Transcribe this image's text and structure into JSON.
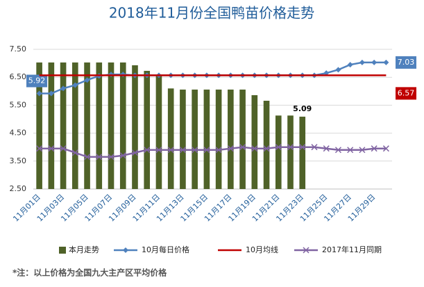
{
  "chart_data": {
    "type": "bar_line",
    "title": "2018年11月份全国鸭苗价格走势",
    "note": "*注：以上价格为全国九大主产区平均价格",
    "categories": [
      "11月01日",
      null,
      "11月03日",
      null,
      "11月05日",
      null,
      "11月07日",
      null,
      "11月09日",
      null,
      "11月11日",
      null,
      "11月13日",
      null,
      "11月15日",
      null,
      "11月17日",
      null,
      "11月19日",
      null,
      "11月21日",
      null,
      "11月23日",
      null,
      "11月25日",
      null,
      "11月27日",
      null,
      "11月29日",
      null
    ],
    "ylim": [
      2.5,
      7.5
    ],
    "yticks": [
      {
        "value": 2.5,
        "label": "2.50"
      },
      {
        "value": 3.5,
        "label": "3.50"
      },
      {
        "value": 4.5,
        "label": "4.50"
      },
      {
        "value": 5.5,
        "label": "5.50"
      },
      {
        "value": 6.5,
        "label": "6.50"
      },
      {
        "value": 7.5,
        "label": "7.50"
      }
    ],
    "grid": true,
    "legend": "bottom",
    "series": [
      {
        "name": "本月走势",
        "kind": "bar",
        "color": "#4f6228",
        "values": [
          7.03,
          7.03,
          7.03,
          7.03,
          7.03,
          7.03,
          7.03,
          7.03,
          6.93,
          6.73,
          6.58,
          6.1,
          6.06,
          6.06,
          6.06,
          6.06,
          6.06,
          6.06,
          5.86,
          5.66,
          5.13,
          5.13,
          5.09,
          null,
          null,
          null,
          null,
          null,
          null,
          null
        ],
        "value_labels": [
          null,
          null,
          null,
          null,
          null,
          null,
          null,
          null,
          null,
          null,
          null,
          null,
          null,
          null,
          null,
          null,
          null,
          null,
          null,
          null,
          null,
          null,
          "5.09",
          null,
          null,
          null,
          null,
          null,
          null,
          null
        ]
      },
      {
        "name": "10月每日价格",
        "kind": "line-diamond",
        "color": "#4f81bd",
        "values": [
          5.92,
          5.92,
          6.1,
          6.22,
          6.4,
          6.55,
          6.6,
          6.6,
          6.57,
          6.57,
          6.57,
          6.57,
          6.57,
          6.57,
          6.57,
          6.57,
          6.57,
          6.57,
          6.57,
          6.57,
          6.57,
          6.57,
          6.57,
          6.57,
          6.65,
          6.77,
          6.95,
          7.03,
          7.03,
          7.03
        ],
        "value_labels": [
          "5.92",
          null,
          null,
          null,
          null,
          null,
          null,
          null,
          null,
          null,
          null,
          null,
          null,
          null,
          null,
          null,
          null,
          null,
          null,
          null,
          null,
          null,
          null,
          null,
          null,
          null,
          null,
          null,
          null,
          "7.03"
        ]
      },
      {
        "name": "10月均线",
        "kind": "line",
        "color": "#c00000",
        "values": [
          6.57,
          6.57,
          6.57,
          6.57,
          6.57,
          6.57,
          6.57,
          6.57,
          6.57,
          6.57,
          6.57,
          6.57,
          6.57,
          6.57,
          6.57,
          6.57,
          6.57,
          6.57,
          6.57,
          6.57,
          6.57,
          6.57,
          6.57,
          6.57,
          6.57,
          6.57,
          6.57,
          6.57,
          6.57,
          6.57
        ],
        "value_labels": [
          null,
          null,
          null,
          null,
          null,
          null,
          null,
          null,
          null,
          null,
          null,
          null,
          null,
          null,
          null,
          null,
          null,
          null,
          null,
          null,
          null,
          null,
          null,
          null,
          null,
          null,
          null,
          null,
          null,
          "6.57"
        ]
      },
      {
        "name": "2017年11月同期",
        "kind": "line-x",
        "color": "#8064a2",
        "values": [
          3.95,
          3.95,
          3.95,
          3.8,
          3.65,
          3.65,
          3.65,
          3.7,
          3.8,
          3.9,
          3.9,
          3.9,
          3.9,
          3.9,
          3.9,
          3.9,
          3.95,
          4.0,
          3.95,
          3.95,
          4.0,
          4.0,
          4.0,
          4.0,
          3.95,
          3.9,
          3.9,
          3.9,
          3.95,
          3.95
        ]
      }
    ]
  }
}
